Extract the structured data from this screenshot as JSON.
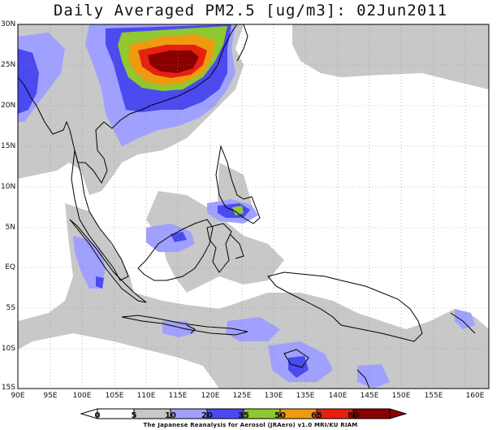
{
  "title": "Daily Averaged PM2.5 [ug/m3]: 02Jun2011",
  "y_axis_labels": [
    "30N",
    "25N",
    "20N",
    "15N",
    "10N",
    "5N",
    "EQ",
    "5S",
    "10S",
    "15S"
  ],
  "x_axis_labels": [
    "90E",
    "95E",
    "100E",
    "105E",
    "110E",
    "115E",
    "120E",
    "125E",
    "130E",
    "135E",
    "140E",
    "145E",
    "150E",
    "155E",
    "160E"
  ],
  "colorbar": {
    "levels": [
      "0",
      "5",
      "10",
      "20",
      "35",
      "50",
      "65",
      "80"
    ],
    "colors": [
      "#ffffff",
      "#c8c8c8",
      "#a0a0ff",
      "#4a4af0",
      "#90c830",
      "#f09a10",
      "#e82010",
      "#8a0000"
    ]
  },
  "credit": "The Japanese Reanalysis for Aerosol (JRAero) v1.0  MRI/KU RIAM"
}
